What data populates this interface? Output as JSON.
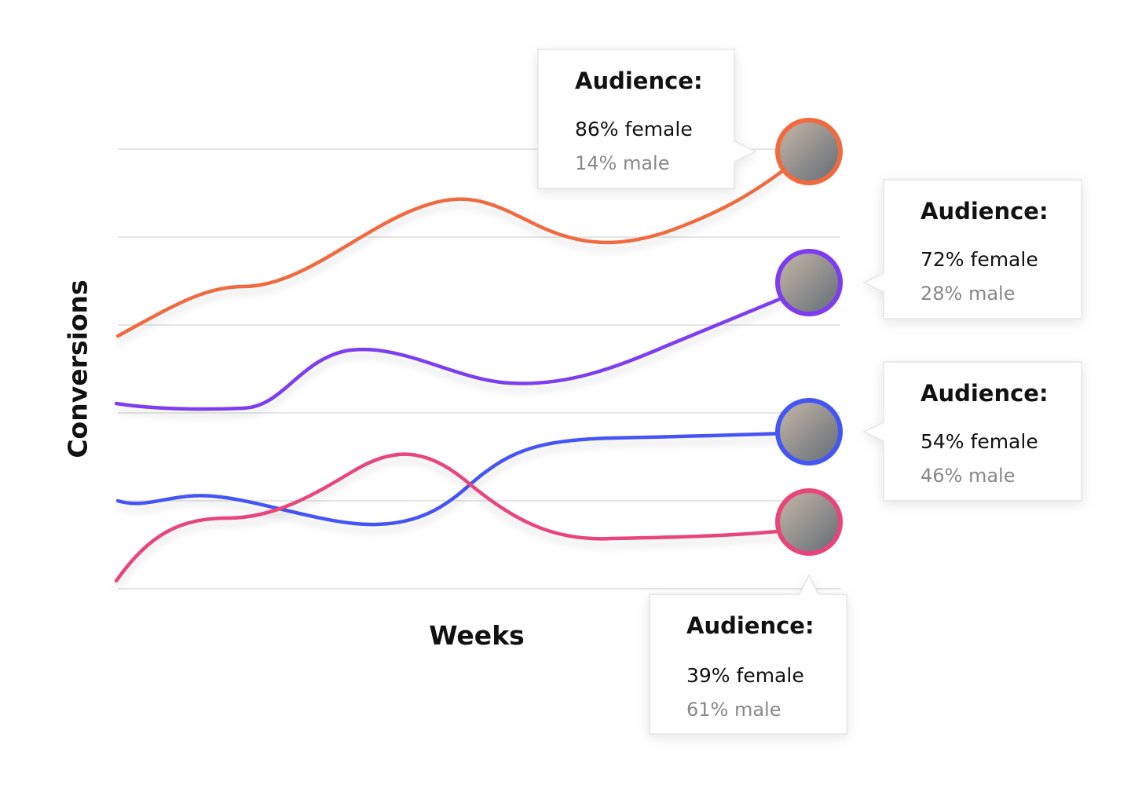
{
  "axes": {
    "y_label": "Conversions",
    "x_label": "Weeks"
  },
  "callouts": [
    {
      "title": "Audience:",
      "female": "86% female",
      "male": "14% male"
    },
    {
      "title": "Audience:",
      "female": "72% female",
      "male": "28% male"
    },
    {
      "title": "Audience:",
      "female": "54% female",
      "male": "46% male"
    },
    {
      "title": "Audience:",
      "female": "39% female",
      "male": "61% male"
    }
  ]
}
